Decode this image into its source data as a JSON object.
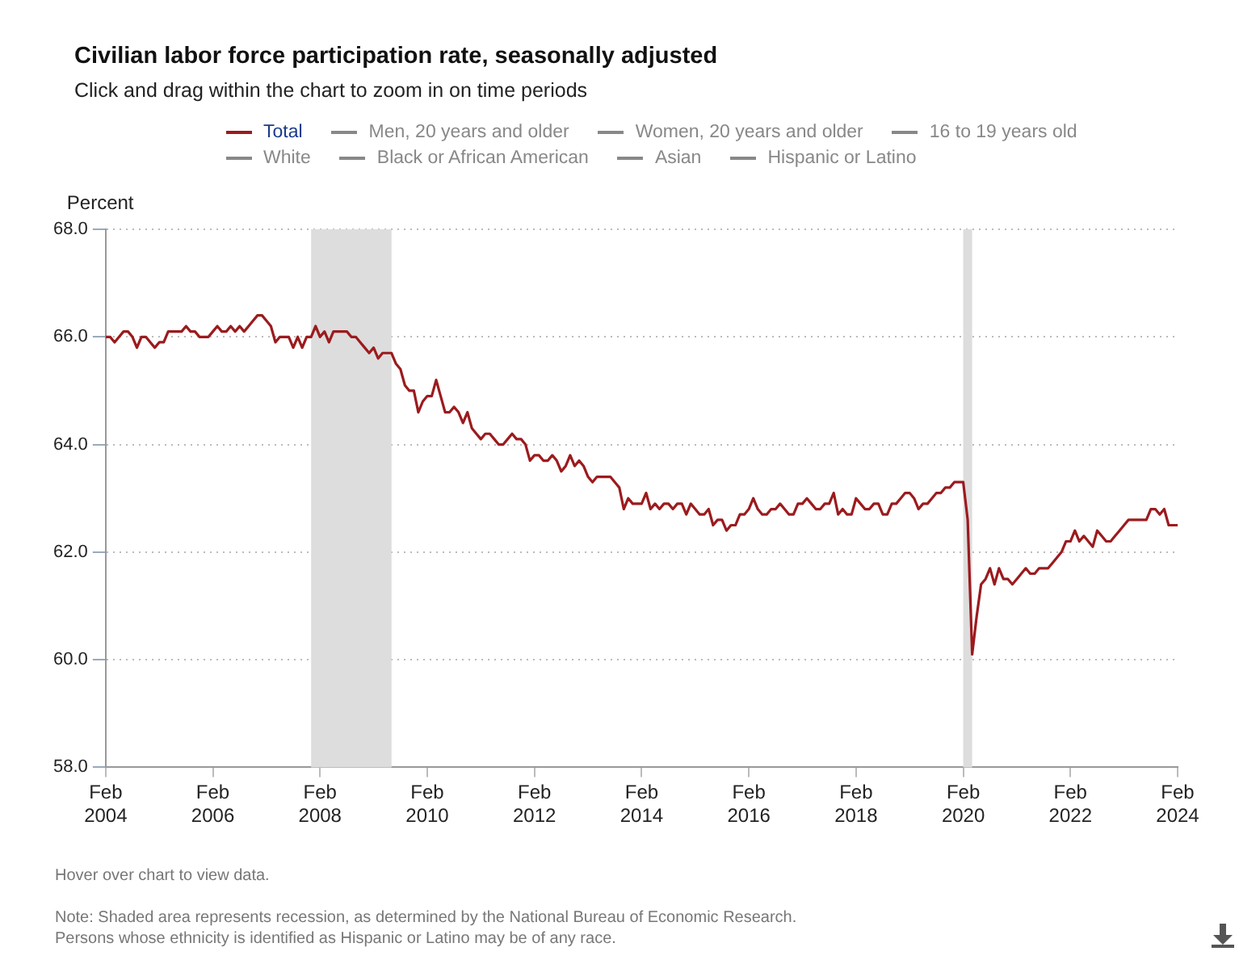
{
  "chart_data": {
    "type": "line",
    "title": "Civilian labor force participation rate, seasonally adjusted",
    "subtitle": "Click and drag within the chart to zoom in on time periods",
    "ylabel": "Percent",
    "x": [
      "2004-02",
      "2004-03",
      "2004-04",
      "2004-05",
      "2004-06",
      "2004-07",
      "2004-08",
      "2004-09",
      "2004-10",
      "2004-11",
      "2004-12",
      "2005-01",
      "2005-02",
      "2005-03",
      "2005-04",
      "2005-05",
      "2005-06",
      "2005-07",
      "2005-08",
      "2005-09",
      "2005-10",
      "2005-11",
      "2005-12",
      "2006-01",
      "2006-02",
      "2006-03",
      "2006-04",
      "2006-05",
      "2006-06",
      "2006-07",
      "2006-08",
      "2006-09",
      "2006-10",
      "2006-11",
      "2006-12",
      "2007-01",
      "2007-02",
      "2007-03",
      "2007-04",
      "2007-05",
      "2007-06",
      "2007-07",
      "2007-08",
      "2007-09",
      "2007-10",
      "2007-11",
      "2007-12",
      "2008-01",
      "2008-02",
      "2008-03",
      "2008-04",
      "2008-05",
      "2008-06",
      "2008-07",
      "2008-08",
      "2008-09",
      "2008-10",
      "2008-11",
      "2008-12",
      "2009-01",
      "2009-02",
      "2009-03",
      "2009-04",
      "2009-05",
      "2009-06",
      "2009-07",
      "2009-08",
      "2009-09",
      "2009-10",
      "2009-11",
      "2009-12",
      "2010-01",
      "2010-02",
      "2010-03",
      "2010-04",
      "2010-05",
      "2010-06",
      "2010-07",
      "2010-08",
      "2010-09",
      "2010-10",
      "2010-11",
      "2010-12",
      "2011-01",
      "2011-02",
      "2011-03",
      "2011-04",
      "2011-05",
      "2011-06",
      "2011-07",
      "2011-08",
      "2011-09",
      "2011-10",
      "2011-11",
      "2011-12",
      "2012-01",
      "2012-02",
      "2012-03",
      "2012-04",
      "2012-05",
      "2012-06",
      "2012-07",
      "2012-08",
      "2012-09",
      "2012-10",
      "2012-11",
      "2012-12",
      "2013-01",
      "2013-02",
      "2013-03",
      "2013-04",
      "2013-05",
      "2013-06",
      "2013-07",
      "2013-08",
      "2013-09",
      "2013-10",
      "2013-11",
      "2013-12",
      "2014-01",
      "2014-02",
      "2014-03",
      "2014-04",
      "2014-05",
      "2014-06",
      "2014-07",
      "2014-08",
      "2014-09",
      "2014-10",
      "2014-11",
      "2014-12",
      "2015-01",
      "2015-02",
      "2015-03",
      "2015-04",
      "2015-05",
      "2015-06",
      "2015-07",
      "2015-08",
      "2015-09",
      "2015-10",
      "2015-11",
      "2015-12",
      "2016-01",
      "2016-02",
      "2016-03",
      "2016-04",
      "2016-05",
      "2016-06",
      "2016-07",
      "2016-08",
      "2016-09",
      "2016-10",
      "2016-11",
      "2016-12",
      "2017-01",
      "2017-02",
      "2017-03",
      "2017-04",
      "2017-05",
      "2017-06",
      "2017-07",
      "2017-08",
      "2017-09",
      "2017-10",
      "2017-11",
      "2017-12",
      "2018-01",
      "2018-02",
      "2018-03",
      "2018-04",
      "2018-05",
      "2018-06",
      "2018-07",
      "2018-08",
      "2018-09",
      "2018-10",
      "2018-11",
      "2018-12",
      "2019-01",
      "2019-02",
      "2019-03",
      "2019-04",
      "2019-05",
      "2019-06",
      "2019-07",
      "2019-08",
      "2019-09",
      "2019-10",
      "2019-11",
      "2019-12",
      "2020-01",
      "2020-02",
      "2020-03",
      "2020-04",
      "2020-05",
      "2020-06",
      "2020-07",
      "2020-08",
      "2020-09",
      "2020-10",
      "2020-11",
      "2020-12",
      "2021-01",
      "2021-02",
      "2021-03",
      "2021-04",
      "2021-05",
      "2021-06",
      "2021-07",
      "2021-08",
      "2021-09",
      "2021-10",
      "2021-11",
      "2021-12",
      "2022-01",
      "2022-02",
      "2022-03",
      "2022-04",
      "2022-05",
      "2022-06",
      "2022-07",
      "2022-08",
      "2022-09",
      "2022-10",
      "2022-11",
      "2022-12",
      "2023-01",
      "2023-02",
      "2023-03",
      "2023-04",
      "2023-05",
      "2023-06",
      "2023-07",
      "2023-08",
      "2023-09",
      "2023-10",
      "2023-11",
      "2023-12",
      "2024-01",
      "2024-02"
    ],
    "series": [
      {
        "name": "Total",
        "color": "#9b1b1e",
        "values": [
          66.0,
          66.0,
          65.9,
          66.0,
          66.1,
          66.1,
          66.0,
          65.8,
          66.0,
          66.0,
          65.9,
          65.8,
          65.9,
          65.9,
          66.1,
          66.1,
          66.1,
          66.1,
          66.2,
          66.1,
          66.1,
          66.0,
          66.0,
          66.0,
          66.1,
          66.2,
          66.1,
          66.1,
          66.2,
          66.1,
          66.2,
          66.1,
          66.2,
          66.3,
          66.4,
          66.4,
          66.3,
          66.2,
          65.9,
          66.0,
          66.0,
          66.0,
          65.8,
          66.0,
          65.8,
          66.0,
          66.0,
          66.2,
          66.0,
          66.1,
          65.9,
          66.1,
          66.1,
          66.1,
          66.1,
          66.0,
          66.0,
          65.9,
          65.8,
          65.7,
          65.8,
          65.6,
          65.7,
          65.7,
          65.7,
          65.5,
          65.4,
          65.1,
          65.0,
          65.0,
          64.6,
          64.8,
          64.9,
          64.9,
          65.2,
          64.9,
          64.6,
          64.6,
          64.7,
          64.6,
          64.4,
          64.6,
          64.3,
          64.2,
          64.1,
          64.2,
          64.2,
          64.1,
          64.0,
          64.0,
          64.1,
          64.2,
          64.1,
          64.1,
          64.0,
          63.7,
          63.8,
          63.8,
          63.7,
          63.7,
          63.8,
          63.7,
          63.5,
          63.6,
          63.8,
          63.6,
          63.7,
          63.6,
          63.4,
          63.3,
          63.4,
          63.4,
          63.4,
          63.4,
          63.3,
          63.2,
          62.8,
          63.0,
          62.9,
          62.9,
          62.9,
          63.1,
          62.8,
          62.9,
          62.8,
          62.9,
          62.9,
          62.8,
          62.9,
          62.9,
          62.7,
          62.9,
          62.8,
          62.7,
          62.7,
          62.8,
          62.5,
          62.6,
          62.6,
          62.4,
          62.5,
          62.5,
          62.7,
          62.7,
          62.8,
          63.0,
          62.8,
          62.7,
          62.7,
          62.8,
          62.8,
          62.9,
          62.8,
          62.7,
          62.7,
          62.9,
          62.9,
          63.0,
          62.9,
          62.8,
          62.8,
          62.9,
          62.9,
          63.1,
          62.7,
          62.8,
          62.7,
          62.7,
          63.0,
          62.9,
          62.8,
          62.8,
          62.9,
          62.9,
          62.7,
          62.7,
          62.9,
          62.9,
          63.0,
          63.1,
          63.1,
          63.0,
          62.8,
          62.9,
          62.9,
          63.0,
          63.1,
          63.1,
          63.2,
          63.2,
          63.3,
          63.3,
          63.3,
          62.6,
          60.1,
          60.8,
          61.4,
          61.5,
          61.7,
          61.4,
          61.7,
          61.5,
          61.5,
          61.4,
          61.5,
          61.6,
          61.7,
          61.6,
          61.6,
          61.7,
          61.7,
          61.7,
          61.8,
          61.9,
          62.0,
          62.2,
          62.2,
          62.4,
          62.2,
          62.3,
          62.2,
          62.1,
          62.4,
          62.3,
          62.2,
          62.2,
          62.3,
          62.4,
          62.5,
          62.6,
          62.6,
          62.6,
          62.6,
          62.6,
          62.8,
          62.8,
          62.7,
          62.8,
          62.5,
          62.5,
          62.5
        ]
      },
      {
        "name": "Men, 20 years and older",
        "color": "#888888",
        "values": [
          null,
          null,
          null,
          null,
          null,
          null,
          null,
          null,
          null,
          null,
          null,
          null,
          null,
          null,
          null,
          null,
          null,
          null,
          null,
          null,
          null,
          null,
          null,
          null,
          null,
          null,
          null,
          null,
          null,
          null,
          null,
          null,
          null,
          null,
          null,
          null,
          null,
          null,
          null,
          null,
          null,
          null,
          null,
          null,
          null,
          null,
          null,
          null,
          null,
          null,
          null,
          null,
          null,
          null,
          null,
          null,
          null,
          null,
          null,
          null,
          null,
          null,
          null,
          null,
          null,
          null,
          null,
          null,
          null,
          null,
          null,
          null,
          null,
          null,
          null,
          null,
          null,
          null,
          null,
          null,
          null,
          null,
          null,
          null,
          null,
          null,
          null,
          null,
          null,
          null,
          null,
          null,
          null,
          null,
          null,
          null,
          null,
          null,
          null,
          null,
          null,
          null,
          null,
          null,
          null,
          null,
          null,
          null,
          null,
          null,
          null,
          null,
          null,
          null,
          null,
          null,
          null,
          null,
          null,
          null,
          null,
          null,
          null,
          null,
          null,
          null,
          null,
          null,
          null,
          null,
          null,
          null,
          null,
          null,
          null,
          null,
          null,
          null,
          null,
          null,
          null,
          null,
          null,
          null,
          null,
          null,
          null,
          null,
          null,
          null,
          null,
          null,
          null,
          null,
          null,
          null,
          null,
          null,
          null,
          null,
          null,
          null,
          null,
          null,
          null,
          null,
          null,
          null,
          null,
          null,
          null,
          null,
          null,
          null,
          null,
          null,
          null,
          null,
          null,
          null,
          null,
          null,
          null,
          null,
          null,
          null,
          null,
          null,
          null,
          null,
          null,
          null,
          null,
          null,
          null,
          null,
          null,
          null,
          null,
          null,
          null,
          null,
          null,
          null,
          null,
          null,
          null,
          null,
          null,
          null,
          null,
          null,
          null,
          null,
          null,
          null,
          null,
          null,
          null,
          null,
          null,
          null,
          null,
          null,
          null,
          null,
          null,
          null,
          null,
          null,
          null,
          null,
          null,
          null,
          null,
          null,
          null,
          null,
          null,
          null,
          null
        ]
      },
      {
        "name": "Women, 20 years and older",
        "color": "#888888",
        "values": [
          null,
          null,
          null,
          null,
          null,
          null,
          null,
          null,
          null,
          null,
          null,
          null,
          null,
          null,
          null,
          null,
          null,
          null,
          null,
          null,
          null,
          null,
          null,
          null,
          null,
          null,
          null,
          null,
          null,
          null,
          null,
          null,
          null,
          null,
          null,
          null,
          null,
          null,
          null,
          null,
          null,
          null,
          null,
          null,
          null,
          null,
          null,
          null,
          null,
          null,
          null,
          null,
          null,
          null,
          null,
          null,
          null,
          null,
          null,
          null,
          null,
          null,
          null,
          null,
          null,
          null,
          null,
          null,
          null,
          null,
          null,
          null,
          null,
          null,
          null,
          null,
          null,
          null,
          null,
          null,
          null,
          null,
          null,
          null,
          null,
          null,
          null,
          null,
          null,
          null,
          null,
          null,
          null,
          null,
          null,
          null,
          null,
          null,
          null,
          null,
          null,
          null,
          null,
          null,
          null,
          null,
          null,
          null,
          null,
          null,
          null,
          null,
          null,
          null,
          null,
          null,
          null,
          null,
          null,
          null,
          null,
          null,
          null,
          null,
          null,
          null,
          null,
          null,
          null,
          null,
          null,
          null,
          null,
          null,
          null,
          null,
          null,
          null,
          null,
          null,
          null,
          null,
          null,
          null,
          null,
          null,
          null,
          null,
          null,
          null,
          null,
          null,
          null,
          null,
          null,
          null,
          null,
          null,
          null,
          null,
          null,
          null,
          null,
          null,
          null,
          null,
          null,
          null,
          null,
          null,
          null,
          null,
          null,
          null,
          null,
          null,
          null,
          null,
          null,
          null,
          null,
          null,
          null,
          null,
          null,
          null,
          null,
          null,
          null,
          null,
          null,
          null,
          null,
          null,
          null,
          null,
          null,
          null,
          null,
          null,
          null,
          null,
          null,
          null,
          null,
          null,
          null,
          null,
          null,
          null,
          null,
          null,
          null,
          null,
          null,
          null,
          null,
          null,
          null,
          null,
          null,
          null,
          null,
          null,
          null,
          null,
          null,
          null,
          null,
          null,
          null,
          null,
          null,
          null,
          null,
          null,
          null,
          null,
          null,
          null,
          null
        ]
      },
      {
        "name": "16 to 19 years old",
        "color": "#888888",
        "values": [
          null,
          null,
          null,
          null,
          null,
          null,
          null,
          null,
          null,
          null,
          null,
          null,
          null,
          null,
          null,
          null,
          null,
          null,
          null,
          null,
          null,
          null,
          null,
          null,
          null,
          null,
          null,
          null,
          null,
          null,
          null,
          null,
          null,
          null,
          null,
          null,
          null,
          null,
          null,
          null,
          null,
          null,
          null,
          null,
          null,
          null,
          null,
          null,
          null,
          null,
          null,
          null,
          null,
          null,
          null,
          null,
          null,
          null,
          null,
          null,
          null,
          null,
          null,
          null,
          null,
          null,
          null,
          null,
          null,
          null,
          null,
          null,
          null,
          null,
          null,
          null,
          null,
          null,
          null,
          null,
          null,
          null,
          null,
          null,
          null,
          null,
          null,
          null,
          null,
          null,
          null,
          null,
          null,
          null,
          null,
          null,
          null,
          null,
          null,
          null,
          null,
          null,
          null,
          null,
          null,
          null,
          null,
          null,
          null,
          null,
          null,
          null,
          null,
          null,
          null,
          null,
          null,
          null,
          null,
          null,
          null,
          null,
          null,
          null,
          null,
          null,
          null,
          null,
          null,
          null,
          null,
          null,
          null,
          null,
          null,
          null,
          null,
          null,
          null,
          null,
          null,
          null,
          null,
          null,
          null,
          null,
          null,
          null,
          null,
          null,
          null,
          null,
          null,
          null,
          null,
          null,
          null,
          null,
          null,
          null,
          null,
          null,
          null,
          null,
          null,
          null,
          null,
          null,
          null,
          null,
          null,
          null,
          null,
          null,
          null,
          null,
          null,
          null,
          null,
          null,
          null,
          null,
          null,
          null,
          null,
          null,
          null,
          null,
          null,
          null,
          null,
          null,
          null,
          null,
          null,
          null,
          null,
          null,
          null,
          null,
          null,
          null,
          null,
          null,
          null,
          null,
          null,
          null,
          null,
          null,
          null,
          null,
          null,
          null,
          null,
          null,
          null,
          null,
          null,
          null,
          null,
          null,
          null,
          null,
          null,
          null,
          null,
          null,
          null,
          null,
          null,
          null,
          null,
          null,
          null,
          null,
          null,
          null,
          null,
          null,
          null
        ]
      },
      {
        "name": "White",
        "color": "#888888",
        "values": [
          null,
          null,
          null,
          null,
          null,
          null,
          null,
          null,
          null,
          null,
          null,
          null,
          null,
          null,
          null,
          null,
          null,
          null,
          null,
          null,
          null,
          null,
          null,
          null,
          null,
          null,
          null,
          null,
          null,
          null,
          null,
          null,
          null,
          null,
          null,
          null,
          null,
          null,
          null,
          null,
          null,
          null,
          null,
          null,
          null,
          null,
          null,
          null,
          null,
          null,
          null,
          null,
          null,
          null,
          null,
          null,
          null,
          null,
          null,
          null,
          null,
          null,
          null,
          null,
          null,
          null,
          null,
          null,
          null,
          null,
          null,
          null,
          null,
          null,
          null,
          null,
          null,
          null,
          null,
          null,
          null,
          null,
          null,
          null,
          null,
          null,
          null,
          null,
          null,
          null,
          null,
          null,
          null,
          null,
          null,
          null,
          null,
          null,
          null,
          null,
          null,
          null,
          null,
          null,
          null,
          null,
          null,
          null,
          null,
          null,
          null,
          null,
          null,
          null,
          null,
          null,
          null,
          null,
          null,
          null,
          null,
          null,
          null,
          null,
          null,
          null,
          null,
          null,
          null,
          null,
          null,
          null,
          null,
          null,
          null,
          null,
          null,
          null,
          null,
          null,
          null,
          null,
          null,
          null,
          null,
          null,
          null,
          null,
          null,
          null,
          null,
          null,
          null,
          null,
          null,
          null,
          null,
          null,
          null,
          null,
          null,
          null,
          null,
          null,
          null,
          null,
          null,
          null,
          null,
          null,
          null,
          null,
          null,
          null,
          null,
          null,
          null,
          null,
          null,
          null,
          null,
          null,
          null,
          null,
          null,
          null,
          null,
          null,
          null,
          null,
          null,
          null,
          null,
          null,
          null,
          null,
          null,
          null,
          null,
          null,
          null,
          null,
          null,
          null,
          null,
          null,
          null,
          null,
          null,
          null,
          null,
          null,
          null,
          null,
          null,
          null,
          null,
          null,
          null,
          null,
          null,
          null,
          null,
          null,
          null,
          null,
          null,
          null,
          null,
          null,
          null,
          null,
          null,
          null,
          null,
          null,
          null,
          null,
          null,
          null,
          null
        ]
      },
      {
        "name": "Black or African American",
        "color": "#888888",
        "values": [
          null,
          null,
          null,
          null,
          null,
          null,
          null,
          null,
          null,
          null,
          null,
          null,
          null,
          null,
          null,
          null,
          null,
          null,
          null,
          null,
          null,
          null,
          null,
          null,
          null,
          null,
          null,
          null,
          null,
          null,
          null,
          null,
          null,
          null,
          null,
          null,
          null,
          null,
          null,
          null,
          null,
          null,
          null,
          null,
          null,
          null,
          null,
          null,
          null,
          null,
          null,
          null,
          null,
          null,
          null,
          null,
          null,
          null,
          null,
          null,
          null,
          null,
          null,
          null,
          null,
          null,
          null,
          null,
          null,
          null,
          null,
          null,
          null,
          null,
          null,
          null,
          null,
          null,
          null,
          null,
          null,
          null,
          null,
          null,
          null,
          null,
          null,
          null,
          null,
          null,
          null,
          null,
          null,
          null,
          null,
          null,
          null,
          null,
          null,
          null,
          null,
          null,
          null,
          null,
          null,
          null,
          null,
          null,
          null,
          null,
          null,
          null,
          null,
          null,
          null,
          null,
          null,
          null,
          null,
          null,
          null,
          null,
          null,
          null,
          null,
          null,
          null,
          null,
          null,
          null,
          null,
          null,
          null,
          null,
          null,
          null,
          null,
          null,
          null,
          null,
          null,
          null,
          null,
          null,
          null,
          null,
          null,
          null,
          null,
          null,
          null,
          null,
          null,
          null,
          null,
          null,
          null,
          null,
          null,
          null,
          null,
          null,
          null,
          null,
          null,
          null,
          null,
          null,
          null,
          null,
          null,
          null,
          null,
          null,
          null,
          null,
          null,
          null,
          null,
          null,
          null,
          null,
          null,
          null,
          null,
          null,
          null,
          null,
          null,
          null,
          null,
          null,
          null,
          null,
          null,
          null,
          null,
          null,
          null,
          null,
          null,
          null,
          null,
          null,
          null,
          null,
          null,
          null,
          null,
          null,
          null,
          null,
          null,
          null,
          null,
          null,
          null,
          null,
          null,
          null,
          null,
          null,
          null,
          null,
          null,
          null,
          null,
          null,
          null,
          null,
          null,
          null,
          null,
          null,
          null,
          null,
          null,
          null,
          null,
          null,
          null
        ]
      },
      {
        "name": "Asian",
        "color": "#888888",
        "values": [
          null,
          null,
          null,
          null,
          null,
          null,
          null,
          null,
          null,
          null,
          null,
          null,
          null,
          null,
          null,
          null,
          null,
          null,
          null,
          null,
          null,
          null,
          null,
          null,
          null,
          null,
          null,
          null,
          null,
          null,
          null,
          null,
          null,
          null,
          null,
          null,
          null,
          null,
          null,
          null,
          null,
          null,
          null,
          null,
          null,
          null,
          null,
          null,
          null,
          null,
          null,
          null,
          null,
          null,
          null,
          null,
          null,
          null,
          null,
          null,
          null,
          null,
          null,
          null,
          null,
          null,
          null,
          null,
          null,
          null,
          null,
          null,
          null,
          null,
          null,
          null,
          null,
          null,
          null,
          null,
          null,
          null,
          null,
          null,
          null,
          null,
          null,
          null,
          null,
          null,
          null,
          null,
          null,
          null,
          null,
          null,
          null,
          null,
          null,
          null,
          null,
          null,
          null,
          null,
          null,
          null,
          null,
          null,
          null,
          null,
          null,
          null,
          null,
          null,
          null,
          null,
          null,
          null,
          null,
          null,
          null,
          null,
          null,
          null,
          null,
          null,
          null,
          null,
          null,
          null,
          null,
          null,
          null,
          null,
          null,
          null,
          null,
          null,
          null,
          null,
          null,
          null,
          null,
          null,
          null,
          null,
          null,
          null,
          null,
          null,
          null,
          null,
          null,
          null,
          null,
          null,
          null,
          null,
          null,
          null,
          null,
          null,
          null,
          null,
          null,
          null,
          null,
          null,
          null,
          null,
          null,
          null,
          null,
          null,
          null,
          null,
          null,
          null,
          null,
          null,
          null,
          null,
          null,
          null,
          null,
          null,
          null,
          null,
          null,
          null,
          null,
          null,
          null,
          null,
          null,
          null,
          null,
          null,
          null,
          null,
          null,
          null,
          null,
          null,
          null,
          null,
          null,
          null,
          null,
          null,
          null,
          null,
          null,
          null,
          null,
          null,
          null,
          null,
          null,
          null,
          null,
          null,
          null,
          null,
          null,
          null,
          null,
          null,
          null,
          null,
          null,
          null,
          null,
          null,
          null,
          null,
          null,
          null,
          null,
          null,
          null
        ]
      },
      {
        "name": "Hispanic or Latino",
        "color": "#888888",
        "values": [
          null,
          null,
          null,
          null,
          null,
          null,
          null,
          null,
          null,
          null,
          null,
          null,
          null,
          null,
          null,
          null,
          null,
          null,
          null,
          null,
          null,
          null,
          null,
          null,
          null,
          null,
          null,
          null,
          null,
          null,
          null,
          null,
          null,
          null,
          null,
          null,
          null,
          null,
          null,
          null,
          null,
          null,
          null,
          null,
          null,
          null,
          null,
          null,
          null,
          null,
          null,
          null,
          null,
          null,
          null,
          null,
          null,
          null,
          null,
          null,
          null,
          null,
          null,
          null,
          null,
          null,
          null,
          null,
          null,
          null,
          null,
          null,
          null,
          null,
          null,
          null,
          null,
          null,
          null,
          null,
          null,
          null,
          null,
          null,
          null,
          null,
          null,
          null,
          null,
          null,
          null,
          null,
          null,
          null,
          null,
          null,
          null,
          null,
          null,
          null,
          null,
          null,
          null,
          null,
          null,
          null,
          null,
          null,
          null,
          null,
          null,
          null,
          null,
          null,
          null,
          null,
          null,
          null,
          null,
          null,
          null,
          null,
          null,
          null,
          null,
          null,
          null,
          null,
          null,
          null,
          null,
          null,
          null,
          null,
          null,
          null,
          null,
          null,
          null,
          null,
          null,
          null,
          null,
          null,
          null,
          null,
          null,
          null,
          null,
          null,
          null,
          null,
          null,
          null,
          null,
          null,
          null,
          null,
          null,
          null,
          null,
          null,
          null,
          null,
          null,
          null,
          null,
          null,
          null,
          null,
          null,
          null,
          null,
          null,
          null,
          null,
          null,
          null,
          null,
          null,
          null,
          null,
          null,
          null,
          null,
          null,
          null,
          null,
          null,
          null,
          null,
          null,
          null,
          null,
          null,
          null,
          null,
          null,
          null,
          null,
          null,
          null,
          null,
          null,
          null,
          null,
          null,
          null,
          null,
          null,
          null,
          null,
          null,
          null,
          null,
          null,
          null,
          null,
          null,
          null,
          null,
          null,
          null,
          null,
          null,
          null,
          null,
          null,
          null,
          null,
          null,
          null,
          null,
          null,
          null,
          null,
          null,
          null,
          null,
          null,
          null
        ]
      }
    ],
    "xlim": [
      "2004-02",
      "2024-02"
    ],
    "xticks": [
      {
        "value": "2004-02",
        "label": "Feb 2004"
      },
      {
        "value": "2006-02",
        "label": "Feb 2006"
      },
      {
        "value": "2008-02",
        "label": "Feb 2008"
      },
      {
        "value": "2010-02",
        "label": "Feb 2010"
      },
      {
        "value": "2012-02",
        "label": "Feb 2012"
      },
      {
        "value": "2014-02",
        "label": "Feb 2014"
      },
      {
        "value": "2016-02",
        "label": "Feb 2016"
      },
      {
        "value": "2018-02",
        "label": "Feb 2018"
      },
      {
        "value": "2020-02",
        "label": "Feb 2020"
      },
      {
        "value": "2022-02",
        "label": "Feb 2022"
      },
      {
        "value": "2024-02",
        "label": "Feb 2024"
      }
    ],
    "ylim": [
      58,
      68
    ],
    "yticks": [
      {
        "value": 58,
        "label": "58.0"
      },
      {
        "value": 60,
        "label": "60.0"
      },
      {
        "value": 62,
        "label": "62.0"
      },
      {
        "value": 64,
        "label": "64.0"
      },
      {
        "value": 66,
        "label": "66.0"
      },
      {
        "value": 68,
        "label": "68.0"
      }
    ],
    "bands": [
      {
        "axis": "x",
        "from": "2007-12",
        "to": "2009-06",
        "color": "#dddddd"
      },
      {
        "axis": "x",
        "from": "2020-02",
        "to": "2020-04",
        "color": "#dddddd"
      }
    ],
    "grid": "y",
    "legend": "top",
    "marker": "none",
    "line_style": "solid",
    "annotations": [
      "Hover over chart to view data.",
      "Note: Shaded area represents recession, as determined by the National Bureau of Economic Research.",
      "Persons whose ethnicity is identified as Hispanic or Latino may be of any race."
    ]
  }
}
